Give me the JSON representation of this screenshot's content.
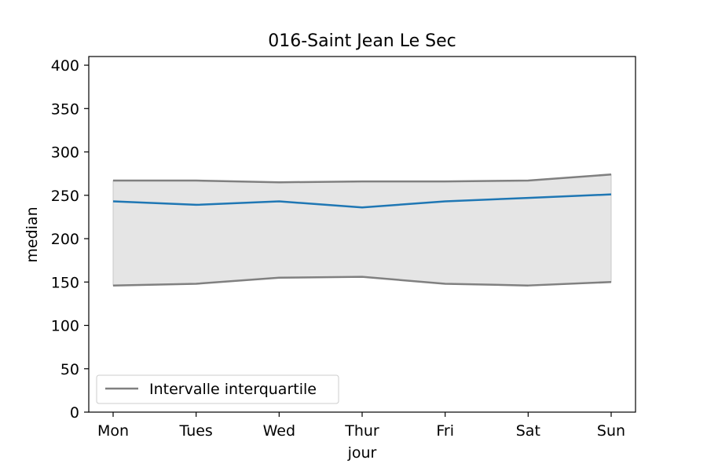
{
  "chart_data": {
    "type": "line",
    "title": "016-Saint Jean Le Sec",
    "xlabel": "jour",
    "ylabel": "median",
    "categories": [
      "Mon",
      "Tues",
      "Wed",
      "Thur",
      "Fri",
      "Sat",
      "Sun"
    ],
    "ylim": [
      0,
      410
    ],
    "yticks": [
      0,
      50,
      100,
      150,
      200,
      250,
      300,
      350,
      400
    ],
    "grid": false,
    "legend_position": "lower-left",
    "series": [
      {
        "values": [
          243,
          239,
          243,
          236,
          243,
          247,
          251
        ],
        "color": "#1f77b4"
      },
      {
        "values": [
          267,
          267,
          265,
          266,
          266,
          267,
          274
        ],
        "color": "#808080"
      },
      {
        "name": "Intervalle interquartile",
        "values": [
          146,
          148,
          155,
          156,
          148,
          146,
          150
        ],
        "color": "#808080"
      }
    ],
    "band": {
      "upper_series": 1,
      "lower_series": 2,
      "fill": "#e5e5e5",
      "edge": "#c8c8c8"
    }
  }
}
